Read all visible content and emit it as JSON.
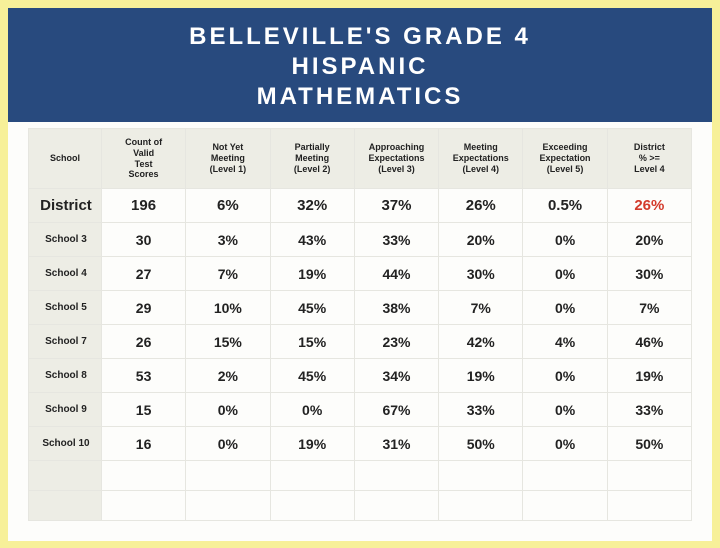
{
  "header": {
    "title_line1": "BELLEVILLE'S GRADE 4",
    "title_line2": "HISPANIC",
    "title_line3": "MATHEMATICS"
  },
  "table": {
    "columns": [
      "School",
      "Count of Valid Test Scores",
      "Not Yet Meeting (Level 1)",
      "Partially Meeting (Level 2)",
      "Approaching Expectations (Level 3)",
      "Meeting Expectations (Level 4)",
      "Exceeding Expectation (Level 5)",
      "District % >= Level 4"
    ],
    "rows": [
      {
        "label": "District",
        "cells": [
          "196",
          "6%",
          "32%",
          "37%",
          "26%",
          "0.5%",
          "26%"
        ],
        "highlight_last": true,
        "district": true
      },
      {
        "label": "School 3",
        "cells": [
          "30",
          "3%",
          "43%",
          "33%",
          "20%",
          "0%",
          "20%"
        ]
      },
      {
        "label": "School 4",
        "cells": [
          "27",
          "7%",
          "19%",
          "44%",
          "30%",
          "0%",
          "30%"
        ]
      },
      {
        "label": "School 5",
        "cells": [
          "29",
          "10%",
          "45%",
          "38%",
          "7%",
          "0%",
          "7%"
        ]
      },
      {
        "label": "School 7",
        "cells": [
          "26",
          "15%",
          "15%",
          "23%",
          "42%",
          "4%",
          "46%"
        ]
      },
      {
        "label": "School 8",
        "cells": [
          "53",
          "2%",
          "45%",
          "34%",
          "19%",
          "0%",
          "19%"
        ]
      },
      {
        "label": "School 9",
        "cells": [
          "15",
          "0%",
          "0%",
          "67%",
          "33%",
          "0%",
          "33%"
        ]
      },
      {
        "label": "School 10",
        "cells": [
          "16",
          "0%",
          "19%",
          "31%",
          "50%",
          "0%",
          "50%"
        ]
      }
    ],
    "empty_rows": 2
  },
  "colors": {
    "page_bg": "#f7f099",
    "header_bg": "#284a7e",
    "header_text": "#ffffff",
    "table_header_bg": "#edede5",
    "border": "#e6e6e0",
    "text": "#222222",
    "highlight": "#d33a2a",
    "content_bg": "#fdfdfb"
  }
}
